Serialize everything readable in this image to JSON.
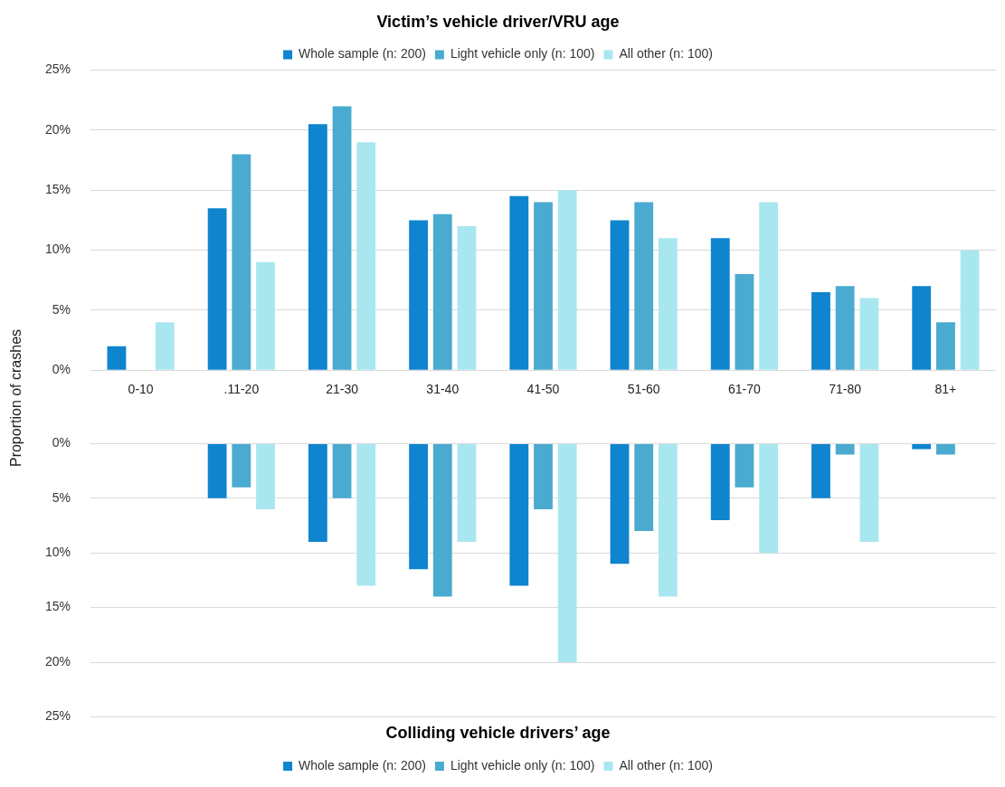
{
  "chart_data": [
    {
      "type": "bar",
      "title": "Victim’s vehicle driver/VRU age",
      "ylabel": "Proportion of crashes",
      "categories": [
        "0-10",
        ".11-20",
        "21-30",
        "31-40",
        "41-50",
        "51-60",
        "61-70",
        "71-80",
        "81+"
      ],
      "series": [
        {
          "name": "Whole sample (n: 200)",
          "color": "#0f84cf",
          "values": [
            2,
            13.5,
            20.5,
            12.5,
            14.5,
            12.5,
            11,
            6.5,
            7
          ]
        },
        {
          "name": "Light vehicle only (n: 100)",
          "color": "#4aaad0",
          "values": [
            0,
            18,
            22,
            13,
            14,
            14,
            8,
            7,
            4
          ]
        },
        {
          "name": "All other (n: 100)",
          "color": "#a9e7f0",
          "values": [
            4,
            9,
            19,
            12,
            15,
            11,
            14,
            6,
            10
          ]
        }
      ],
      "ylim": [
        0,
        25
      ],
      "yticks": [
        {
          "value": 0,
          "label": "0%"
        },
        {
          "value": 5,
          "label": "5%"
        },
        {
          "value": 10,
          "label": "10%"
        },
        {
          "value": 15,
          "label": "15%"
        },
        {
          "value": 20,
          "label": "20%"
        },
        {
          "value": 25,
          "label": "25%"
        }
      ],
      "grid": "y",
      "legend": "top"
    },
    {
      "type": "bar",
      "title": "Colliding vehicle drivers’ age",
      "categories": [
        null,
        null,
        null,
        null,
        null,
        null,
        null,
        null,
        null
      ],
      "series": [
        {
          "name": "Whole sample (n: 200)",
          "color": "#0f84cf",
          "values": [
            0,
            5,
            9,
            11.5,
            13,
            11,
            7,
            5,
            0.5
          ]
        },
        {
          "name": "Light vehicle only (n: 100)",
          "color": "#4aaad0",
          "values": [
            0,
            4,
            5,
            14,
            6,
            8,
            4,
            1,
            1
          ]
        },
        {
          "name": "All other (n: 100)",
          "color": "#a9e7f0",
          "values": [
            0,
            6,
            13,
            9,
            20,
            14,
            10,
            9,
            0
          ]
        }
      ],
      "ylim": [
        25,
        0
      ],
      "yticks": [
        {
          "value": 0,
          "label": "0%"
        },
        {
          "value": 5,
          "label": "5%"
        },
        {
          "value": 10,
          "label": "10%"
        },
        {
          "value": 15,
          "label": "15%"
        },
        {
          "value": 20,
          "label": "20%"
        },
        {
          "value": 25,
          "label": "25%"
        }
      ],
      "grid": "y",
      "legend": "bottom",
      "tick_labels": "y"
    }
  ]
}
